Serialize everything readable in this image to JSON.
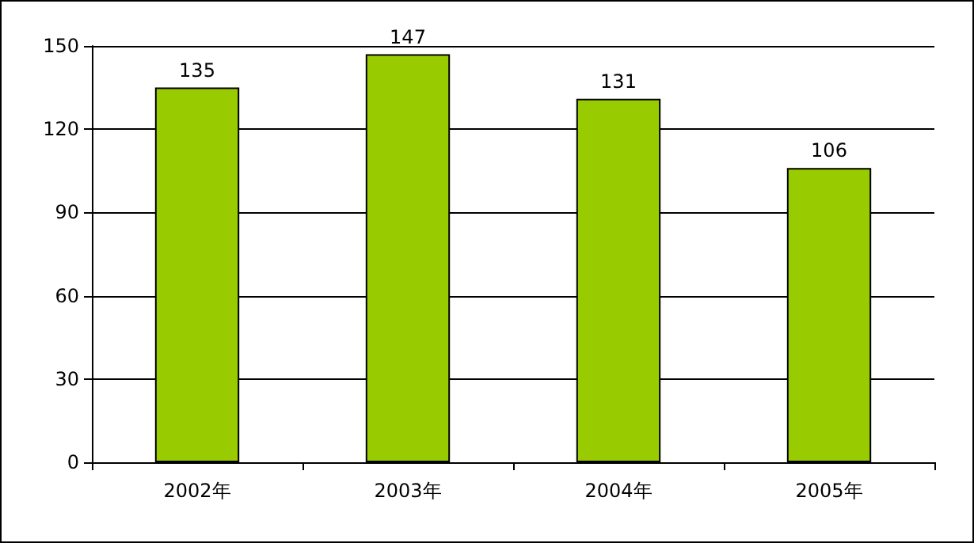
{
  "chart_data": {
    "type": "bar",
    "categories": [
      "2002年",
      "2003年",
      "2004年",
      "2005年"
    ],
    "values": [
      135,
      147,
      131,
      106
    ],
    "color": "#99cc00",
    "ylim": [
      0,
      150
    ],
    "yticks": [
      0,
      30,
      60,
      90,
      120,
      150
    ],
    "grid": "y",
    "data_labels": true
  }
}
